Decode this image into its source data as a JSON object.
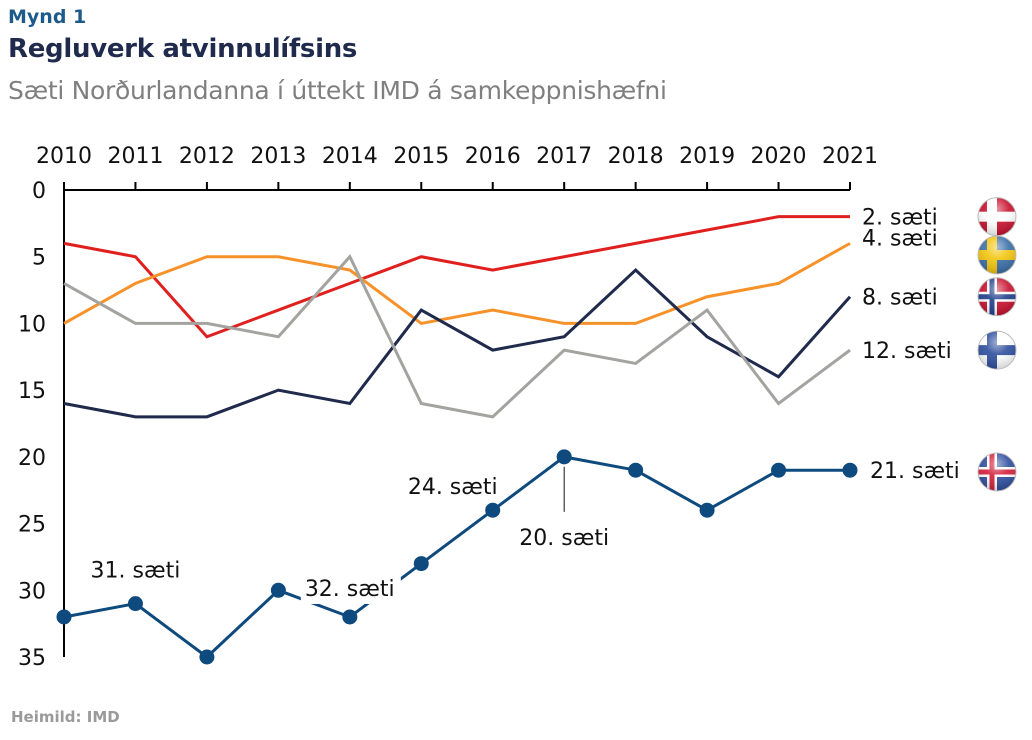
{
  "header": {
    "figure_label": "Mynd 1",
    "title": "Regluverk atvinnulífsins",
    "subtitle": "Sæti Norðurlandanna í úttekt IMD á samkeppnishæfni"
  },
  "footer": {
    "source": "Heimild: IMD"
  },
  "chart_data": {
    "type": "line",
    "title": "Regluverk atvinnulífsins",
    "subtitle": "Sæti Norðurlandanna í úttekt IMD á samkeppnishæfni",
    "xlabel": "",
    "ylabel": "",
    "x": [
      2010,
      2011,
      2012,
      2013,
      2014,
      2015,
      2016,
      2017,
      2018,
      2019,
      2020,
      2021
    ],
    "x_tick_labels": [
      "2010",
      "2011",
      "2012",
      "2013",
      "2014",
      "2015",
      "2016",
      "2017",
      "2018",
      "2019",
      "2020",
      "2021"
    ],
    "x_axis_position": "top",
    "y_ticks": [
      0,
      5,
      10,
      15,
      20,
      25,
      30,
      35
    ],
    "ylim": [
      0,
      35
    ],
    "y_inverted": true,
    "grid": false,
    "legend": "right-end labels with flag icons",
    "series": [
      {
        "name": "Danmörk",
        "flag": "denmark-flag",
        "color": "#e0201f",
        "markers": false,
        "values": [
          4,
          5,
          11,
          9,
          7,
          5,
          6,
          5,
          4,
          3,
          2,
          2
        ],
        "end_label": "2. sæti"
      },
      {
        "name": "Svíþjóð",
        "flag": "sweden-flag",
        "color": "#f7922a",
        "markers": false,
        "values": [
          10,
          7,
          5,
          5,
          6,
          10,
          9,
          10,
          10,
          8,
          7,
          4
        ],
        "end_label": "4. sæti"
      },
      {
        "name": "Noregur",
        "flag": "norway-flag",
        "color": "#1f2a4c",
        "markers": false,
        "values": [
          16,
          17,
          17,
          15,
          16,
          9,
          12,
          11,
          6,
          11,
          14,
          8
        ],
        "end_label": "8. sæti"
      },
      {
        "name": "Finnland",
        "flag": "finland-flag",
        "color": "#a3a3a0",
        "markers": false,
        "values": [
          7,
          10,
          10,
          11,
          5,
          16,
          17,
          12,
          13,
          9,
          16,
          12
        ],
        "end_label": "12. sæti"
      },
      {
        "name": "Ísland",
        "flag": "iceland-flag",
        "color": "#0e4a7e",
        "markers": true,
        "values": [
          32,
          31,
          35,
          30,
          32,
          28,
          24,
          20,
          21,
          24,
          21,
          21
        ],
        "end_label": "21. sæti"
      }
    ],
    "annotations": [
      {
        "text": "31. sæti",
        "x": 2011
      },
      {
        "text": "32. sæti",
        "x": 2014
      },
      {
        "text": "24. sæti",
        "x": 2016
      },
      {
        "text": "20. sæti",
        "x": 2017
      }
    ]
  }
}
